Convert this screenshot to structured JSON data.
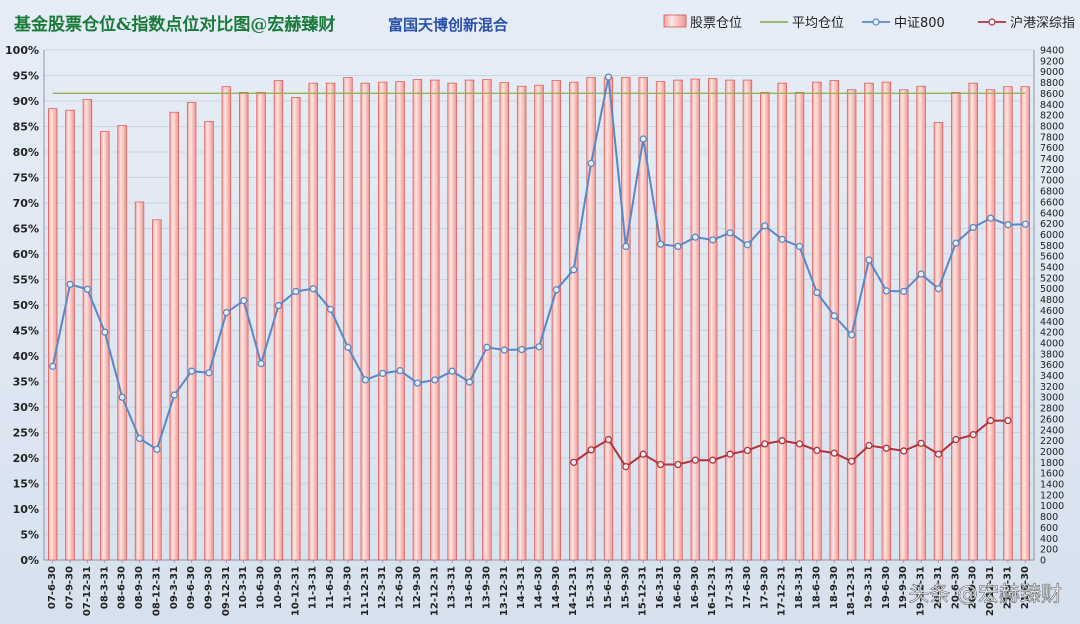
{
  "chart_data": {
    "type": "bar",
    "title": "基金股票仓位&指数点位对比图@宏赫臻财",
    "subtitle": "富国天博创新混合",
    "categories": [
      "07-6-30",
      "07-9-30",
      "07-12-31",
      "08-3-31",
      "08-6-30",
      "08-9-30",
      "08-12-31",
      "09-3-31",
      "09-6-30",
      "09-9-30",
      "09-12-31",
      "10-3-31",
      "10-6-30",
      "10-9-30",
      "10-12-31",
      "11-3-31",
      "11-6-30",
      "11-9-30",
      "11-12-31",
      "12-3-31",
      "12-6-30",
      "12-9-30",
      "12-12-31",
      "13-3-31",
      "13-6-30",
      "13-9-30",
      "13-12-31",
      "14-3-31",
      "14-6-30",
      "14-9-30",
      "14-12-31",
      "15-3-31",
      "15-6-30",
      "15-9-30",
      "15-12-31",
      "16-3-31",
      "16-6-30",
      "16-9-30",
      "16-12-31",
      "17-3-31",
      "17-6-30",
      "17-9-30",
      "17-12-31",
      "18-3-31",
      "18-6-30",
      "18-9-30",
      "18-12-31",
      "19-3-31",
      "19-6-30",
      "19-9-30",
      "19-12-31",
      "20-3-31",
      "20-6-30",
      "20-9-30",
      "20-12-31",
      "21-3-31",
      "21-6-30"
    ],
    "series": [
      {
        "name": "股票仓位",
        "type": "bar",
        "color": "#f5a7a3",
        "values": [
          0.885,
          0.882,
          0.903,
          0.84,
          0.852,
          0.702,
          0.667,
          0.878,
          0.897,
          0.86,
          0.928,
          0.917,
          0.917,
          0.94,
          0.907,
          0.935,
          0.935,
          0.946,
          0.935,
          0.937,
          0.938,
          0.942,
          0.941,
          0.935,
          0.941,
          0.942,
          0.936,
          0.929,
          0.931,
          0.94,
          0.937,
          0.946,
          0.946,
          0.946,
          0.946,
          0.938,
          0.941,
          0.943,
          0.944,
          0.941,
          0.941,
          0.917,
          0.935,
          0.917,
          0.937,
          0.94,
          0.922,
          0.935,
          0.937,
          0.922,
          0.929,
          0.858,
          0.917,
          0.935,
          0.922,
          0.928,
          0.928
        ]
      },
      {
        "name": "平均仓位",
        "type": "line",
        "color": "#92b35a",
        "value": 0.915
      },
      {
        "name": "中证800",
        "type": "line",
        "color": "#5b87c4",
        "values": [
          3570,
          5080,
          4990,
          4200,
          3000,
          2240,
          2040,
          3040,
          3480,
          3450,
          4560,
          4780,
          3620,
          4690,
          4950,
          5000,
          4620,
          3920,
          3320,
          3440,
          3490,
          3260,
          3320,
          3480,
          3280,
          3920,
          3870,
          3880,
          3930,
          4980,
          5350,
          7310,
          8900,
          5780,
          7760,
          5820,
          5780,
          5950,
          5900,
          6030,
          5810,
          6160,
          5910,
          5780,
          4930,
          4500,
          4150,
          5530,
          4960,
          4950,
          5270,
          5000,
          5840,
          6130,
          6300,
          6180,
          6190
        ]
      },
      {
        "name": "沪港深综指",
        "type": "line",
        "color": "#b0343c",
        "values": [
          null,
          null,
          null,
          null,
          null,
          null,
          null,
          null,
          null,
          null,
          null,
          null,
          null,
          null,
          null,
          null,
          null,
          null,
          null,
          null,
          null,
          null,
          null,
          null,
          null,
          null,
          null,
          null,
          null,
          null,
          1800,
          2030,
          2220,
          1720,
          1950,
          1760,
          1760,
          1840,
          1840,
          1950,
          2020,
          2140,
          2200,
          2140,
          2020,
          1970,
          1820,
          2110,
          2060,
          2010,
          2150,
          1950,
          2220,
          2310,
          2570,
          2570,
          null
        ]
      }
    ],
    "y_left": {
      "min": 0,
      "max": 1,
      "step": 0.05,
      "format": "percent"
    },
    "y_right": {
      "min": 0,
      "max": 9400,
      "step": 200
    },
    "legend_position": "top-right",
    "grid": true
  },
  "watermark": "头条 @宏赫臻财"
}
